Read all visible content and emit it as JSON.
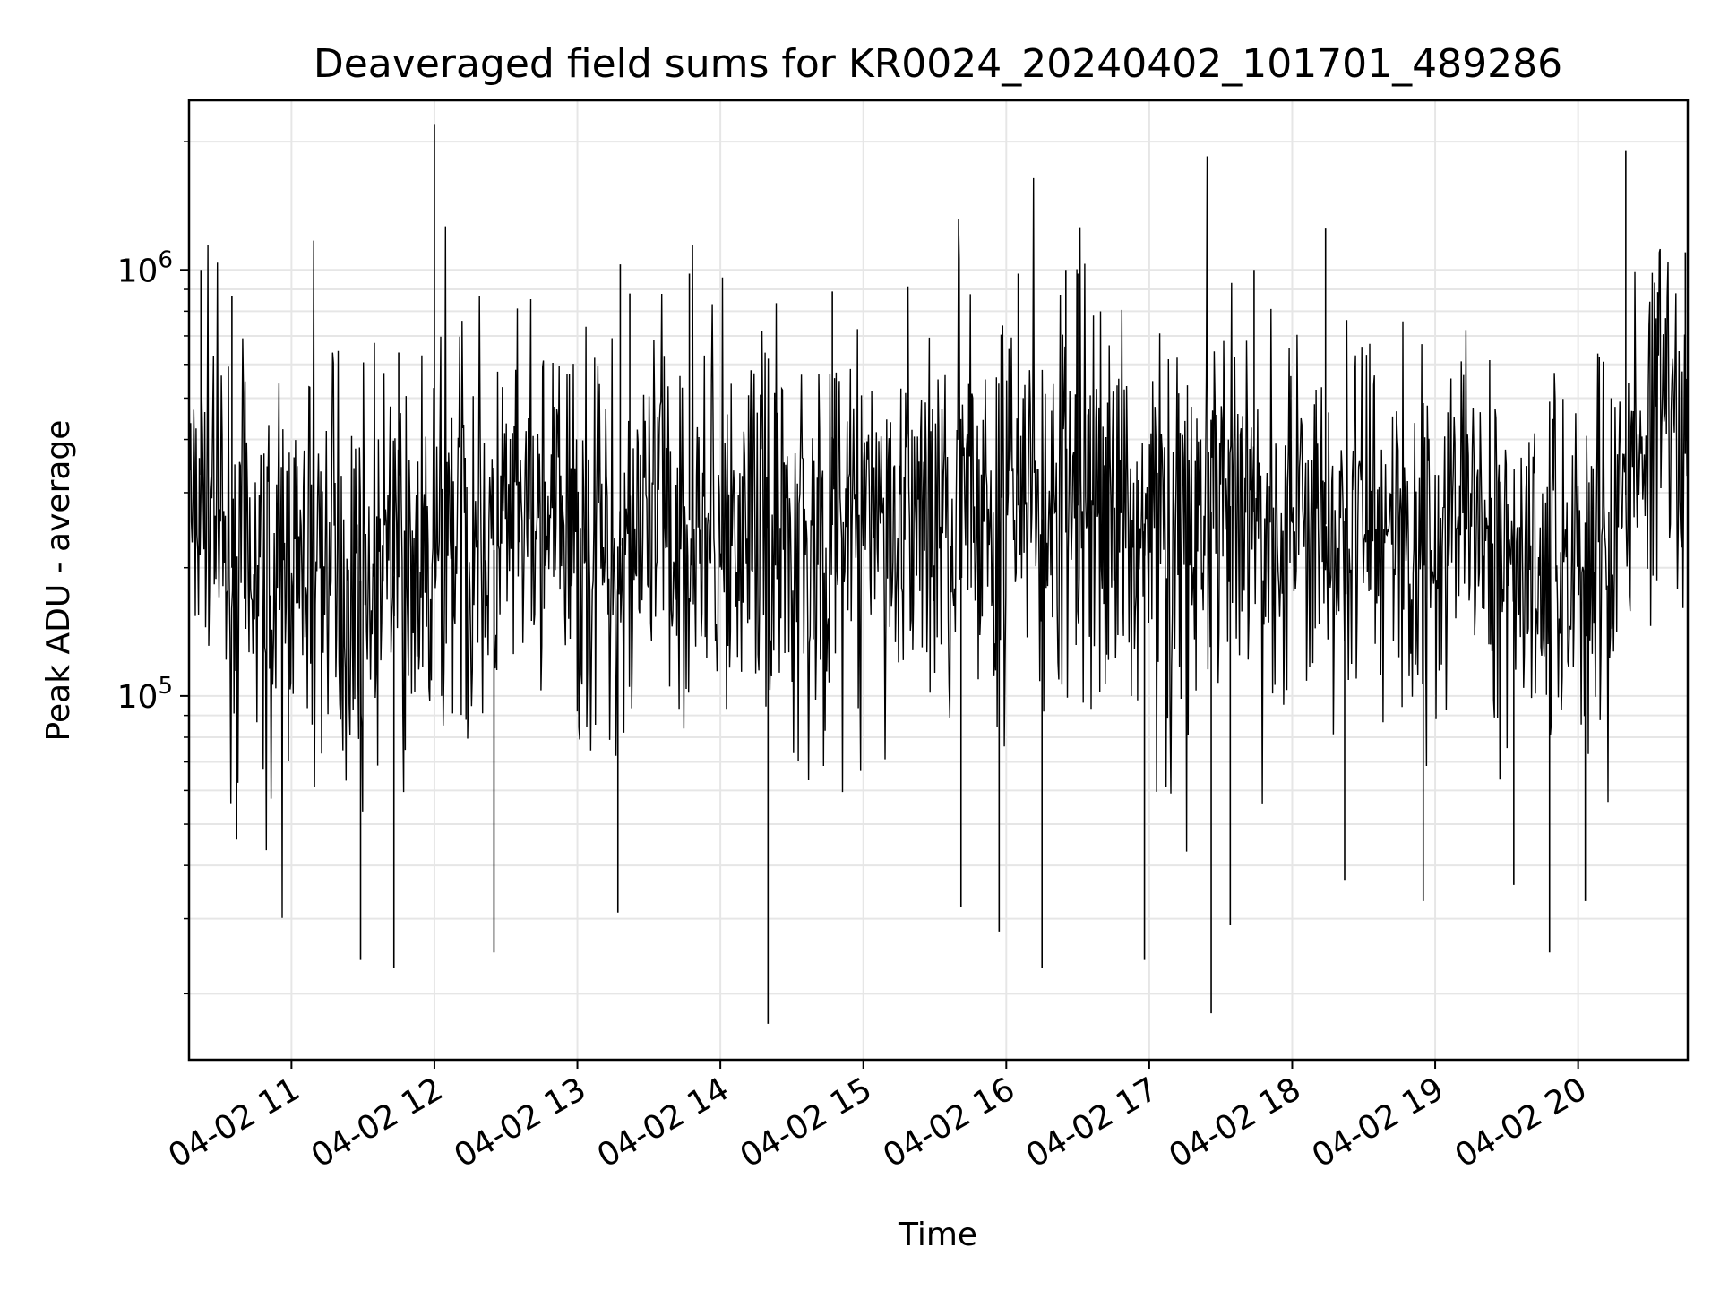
{
  "chart_data": {
    "type": "line",
    "title": "Deaveraged field sums for KR0024_20240402_101701_489286",
    "xlabel": "Time",
    "ylabel": "Peak ADU - average",
    "xlim": [
      "2024-04-02 10:17",
      "2024-04-02 20:46"
    ],
    "ylim": [
      14000,
      2500000
    ],
    "y_scale": "log",
    "grid": true,
    "line_color": "#000000",
    "x_ticks": [
      {
        "t": "2024-04-02 11:00",
        "label": "04-02 11"
      },
      {
        "t": "2024-04-02 12:00",
        "label": "04-02 12"
      },
      {
        "t": "2024-04-02 13:00",
        "label": "04-02 13"
      },
      {
        "t": "2024-04-02 14:00",
        "label": "04-02 14"
      },
      {
        "t": "2024-04-02 15:00",
        "label": "04-02 15"
      },
      {
        "t": "2024-04-02 16:00",
        "label": "04-02 16"
      },
      {
        "t": "2024-04-02 17:00",
        "label": "04-02 17"
      },
      {
        "t": "2024-04-02 18:00",
        "label": "04-02 18"
      },
      {
        "t": "2024-04-02 19:00",
        "label": "04-02 19"
      },
      {
        "t": "2024-04-02 20:00",
        "label": "04-02 20"
      }
    ],
    "y_ticks": [
      {
        "value": 100000,
        "mantissa": "10",
        "exponent": "5"
      },
      {
        "value": 1000000,
        "mantissa": "10",
        "exponent": "6"
      }
    ],
    "series": [
      {
        "x": [
          "2024-04-02 10:17",
          "2024-04-02 10:25",
          "2024-04-02 10:35",
          "2024-04-02 10:45",
          "2024-04-02 10:55",
          "2024-04-02 11:05",
          "2024-04-02 11:15",
          "2024-04-02 11:25",
          "2024-04-02 11:35",
          "2024-04-02 11:45",
          "2024-04-02 11:55",
          "2024-04-02 12:05",
          "2024-04-02 12:15",
          "2024-04-02 12:25",
          "2024-04-02 12:35",
          "2024-04-02 12:45",
          "2024-04-02 12:55",
          "2024-04-02 13:05",
          "2024-04-02 13:15",
          "2024-04-02 13:25",
          "2024-04-02 13:35",
          "2024-04-02 13:45",
          "2024-04-02 13:55",
          "2024-04-02 14:05",
          "2024-04-02 14:15",
          "2024-04-02 14:25",
          "2024-04-02 14:35",
          "2024-04-02 14:45",
          "2024-04-02 14:55",
          "2024-04-02 15:05",
          "2024-04-02 15:15",
          "2024-04-02 15:25",
          "2024-04-02 15:35",
          "2024-04-02 15:45",
          "2024-04-02 15:55",
          "2024-04-02 16:05",
          "2024-04-02 16:15",
          "2024-04-02 16:25",
          "2024-04-02 16:35",
          "2024-04-02 16:45",
          "2024-04-02 16:55",
          "2024-04-02 17:05",
          "2024-04-02 17:15",
          "2024-04-02 17:25",
          "2024-04-02 17:35",
          "2024-04-02 17:45",
          "2024-04-02 17:55",
          "2024-04-02 18:05",
          "2024-04-02 18:15",
          "2024-04-02 18:25",
          "2024-04-02 18:35",
          "2024-04-02 18:45",
          "2024-04-02 18:55",
          "2024-04-02 19:05",
          "2024-04-02 19:15",
          "2024-04-02 19:25",
          "2024-04-02 19:35",
          "2024-04-02 19:45",
          "2024-04-02 19:55",
          "2024-04-02 20:05",
          "2024-04-02 20:15",
          "2024-04-02 20:25",
          "2024-04-02 20:35",
          "2024-04-02 20:45"
        ],
        "y": [
          300000,
          350000,
          200000,
          210000,
          190000,
          200000,
          210000,
          180000,
          195000,
          190000,
          200000,
          230000,
          250000,
          220000,
          240000,
          250000,
          240000,
          230000,
          220000,
          240000,
          250000,
          260000,
          250000,
          240000,
          250000,
          260000,
          240000,
          250000,
          260000,
          250000,
          240000,
          260000,
          270000,
          260000,
          250000,
          280000,
          260000,
          270000,
          290000,
          270000,
          260000,
          240000,
          250000,
          270000,
          280000,
          270000,
          260000,
          280000,
          250000,
          260000,
          270000,
          250000,
          240000,
          250000,
          240000,
          220000,
          210000,
          220000,
          200000,
          210000,
          220000,
          400000,
          380000,
          370000
        ],
        "spike_highs": [
          {
            "x": "2024-04-02 10:22",
            "y": 1000000
          },
          {
            "x": "2024-04-02 10:35",
            "y": 870000
          },
          {
            "x": "2024-04-02 11:45",
            "y": 640000
          },
          {
            "x": "2024-04-02 12:00",
            "y": 2200000
          },
          {
            "x": "2024-04-02 13:18",
            "y": 1030000
          },
          {
            "x": "2024-04-02 13:22",
            "y": 880000
          },
          {
            "x": "2024-04-02 13:47",
            "y": 980000
          },
          {
            "x": "2024-04-02 14:47",
            "y": 890000
          },
          {
            "x": "2024-04-02 16:05",
            "y": 980000
          },
          {
            "x": "2024-04-02 16:25",
            "y": 1000000
          },
          {
            "x": "2024-04-02 16:30",
            "y": 980000
          },
          {
            "x": "2024-04-02 17:44",
            "y": 1000000
          },
          {
            "x": "2024-04-02 18:14",
            "y": 1250000
          },
          {
            "x": "2024-04-02 20:20",
            "y": 1900000
          },
          {
            "x": "2024-04-02 20:45",
            "y": 1100000
          }
        ],
        "spike_lows": [
          {
            "x": "2024-04-02 10:37",
            "y": 46000
          },
          {
            "x": "2024-04-02 11:29",
            "y": 24000
          },
          {
            "x": "2024-04-02 11:43",
            "y": 23000
          },
          {
            "x": "2024-04-02 12:25",
            "y": 25000
          },
          {
            "x": "2024-04-02 13:17",
            "y": 31000
          },
          {
            "x": "2024-04-02 14:20",
            "y": 17000
          },
          {
            "x": "2024-04-02 15:41",
            "y": 32000
          },
          {
            "x": "2024-04-02 15:57",
            "y": 28000
          },
          {
            "x": "2024-04-02 16:15",
            "y": 23000
          },
          {
            "x": "2024-04-02 16:58",
            "y": 24000
          },
          {
            "x": "2024-04-02 17:26",
            "y": 18000
          },
          {
            "x": "2024-04-02 17:34",
            "y": 29000
          },
          {
            "x": "2024-04-02 18:22",
            "y": 37000
          },
          {
            "x": "2024-04-02 18:55",
            "y": 33000
          },
          {
            "x": "2024-04-02 19:33",
            "y": 36000
          },
          {
            "x": "2024-04-02 19:48",
            "y": 25000
          },
          {
            "x": "2024-04-02 20:03",
            "y": 33000
          }
        ]
      }
    ]
  }
}
